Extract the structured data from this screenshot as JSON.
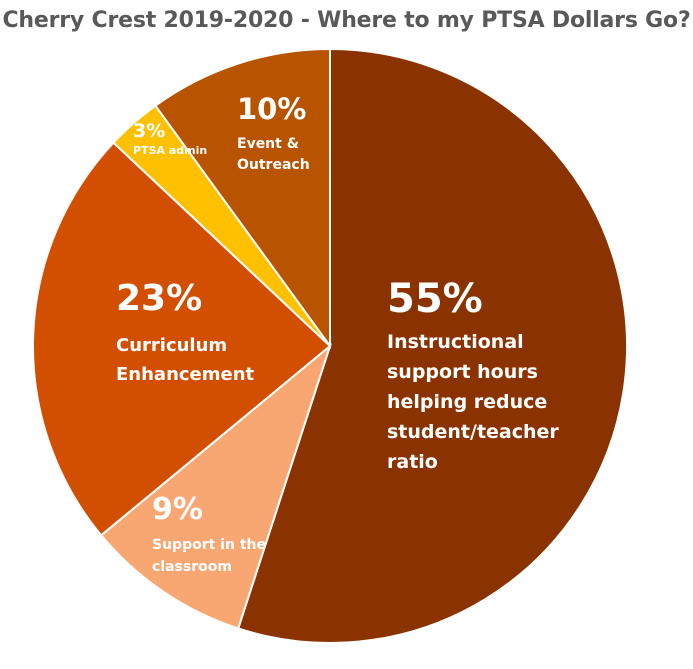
{
  "chart_data": {
    "type": "pie",
    "title": "Cherry Crest 2019-2020 - Where to my PTSA Dollars Go?",
    "slices": [
      {
        "key": "instructional",
        "percent_label": "55%",
        "label": "Instructional\nsupport hours\nhelping reduce\nstudent/teacher\nratio",
        "value": 55,
        "color": "#8B3300"
      },
      {
        "key": "support",
        "percent_label": "9%",
        "label": "Support in the\nclassroom",
        "value": 9,
        "color": "#F8A772"
      },
      {
        "key": "curriculum",
        "percent_label": "23%",
        "label": "Curriculum\nEnhancement",
        "value": 23,
        "color": "#D24E00"
      },
      {
        "key": "admin",
        "percent_label": "3%",
        "label": "PTSA admin",
        "value": 3,
        "color": "#FFC000"
      },
      {
        "key": "event",
        "percent_label": "10%",
        "label": "Event &\nOutreach",
        "value": 10,
        "color": "#B85300"
      }
    ]
  }
}
